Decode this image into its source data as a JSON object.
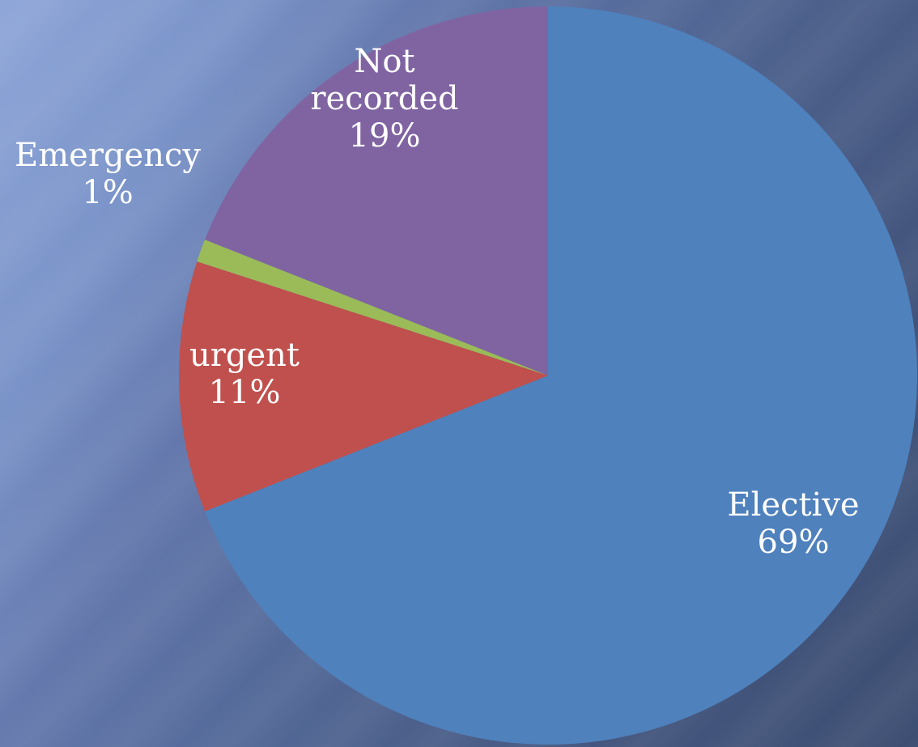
{
  "chart_data": {
    "type": "pie",
    "title": "",
    "slices": [
      {
        "name": "Elective",
        "value": 69,
        "percent_label": "69%",
        "color": "#4f81bd"
      },
      {
        "name": "urgent",
        "value": 11,
        "percent_label": "11%",
        "color": "#c0504d"
      },
      {
        "name": "Emergency",
        "value": 1,
        "percent_label": "1%",
        "color": "#9bbb59"
      },
      {
        "name": "Not recorded",
        "value": 19,
        "percent_label": "19%",
        "color": "#8064a2"
      }
    ],
    "start_angle_deg": 0,
    "direction": "clockwise",
    "legend": "none"
  }
}
